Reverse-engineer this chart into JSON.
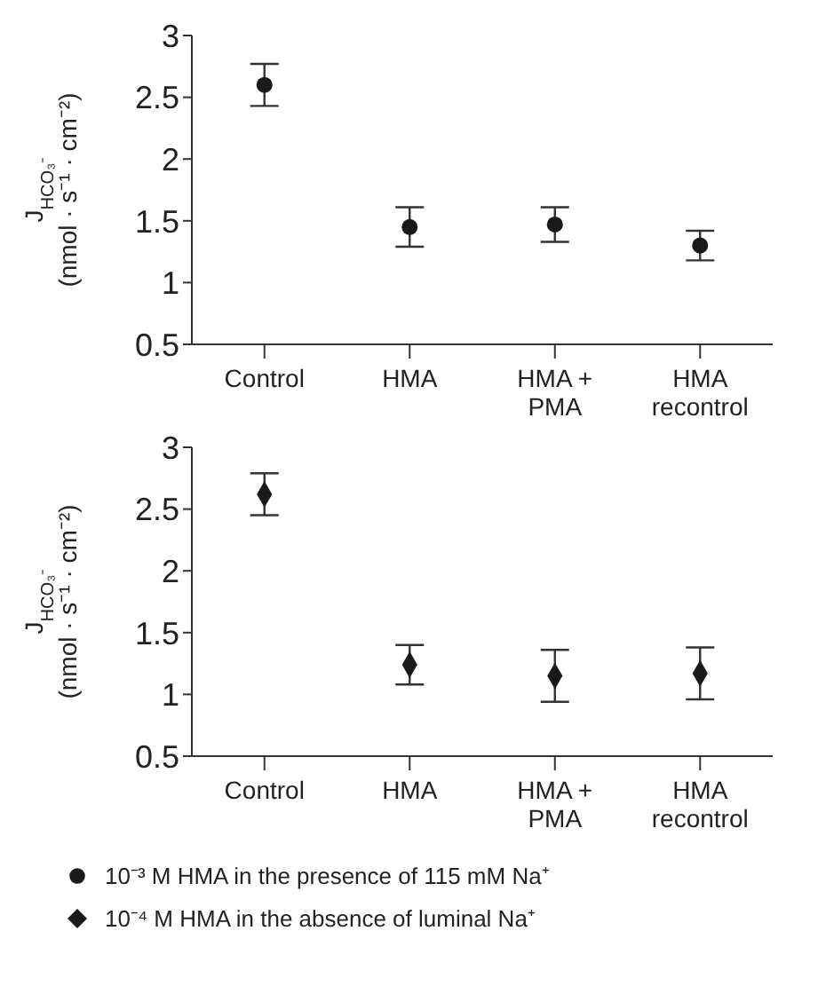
{
  "chart_data": [
    {
      "type": "scatter",
      "categories": [
        "Control",
        "HMA",
        "HMA +\nPMA",
        "HMA\nrecontrol"
      ],
      "ylabel": "J$_{HCO₃⁻}$\n(nmol · s⁻¹ · cm⁻²)",
      "ylim": [
        0.5,
        3
      ],
      "yticks": [
        0.5,
        1,
        1.5,
        2,
        2.5,
        3
      ],
      "grid": false,
      "legend": "bottom",
      "marker": "circle",
      "series": [
        {
          "name": "10⁻³ M HMA in the presence of 115 mM Na⁺",
          "color": "#1a1a1a",
          "values": [
            2.6,
            1.45,
            1.47,
            1.3
          ],
          "errors": [
            0.17,
            0.16,
            0.14,
            0.12
          ]
        }
      ]
    },
    {
      "type": "scatter",
      "categories": [
        "Control",
        "HMA",
        "HMA +\nPMA",
        "HMA\nrecontrol"
      ],
      "ylabel": "J$_{HCO₃⁻}$\n(nmol · s⁻¹ · cm⁻²)",
      "ylim": [
        0.5,
        3
      ],
      "yticks": [
        0.5,
        1,
        1.5,
        2,
        2.5,
        3
      ],
      "grid": false,
      "legend": "bottom",
      "marker": "diamond",
      "series": [
        {
          "name": "10⁻⁴ M HMA in the absence of luminal Na⁺",
          "color": "#1a1a1a",
          "values": [
            2.62,
            1.24,
            1.15,
            1.17
          ],
          "errors": [
            0.17,
            0.16,
            0.21,
            0.21
          ]
        }
      ]
    }
  ]
}
